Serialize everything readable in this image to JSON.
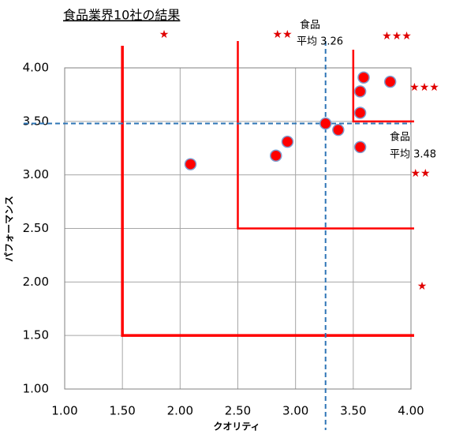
{
  "chart_data": {
    "type": "scatter",
    "title": "食品業界10社の結果",
    "x_label": "クオリティ",
    "y_label": "パフォーマンス",
    "xlim": [
      1,
      4
    ],
    "ylim": [
      1,
      4
    ],
    "xticks": [
      {
        "value": 1,
        "label": "1.00"
      },
      {
        "value": 1.5,
        "label": "1.50"
      },
      {
        "value": 2,
        "label": "2.00"
      },
      {
        "value": 2.5,
        "label": "2.50"
      },
      {
        "value": 3,
        "label": "3.00"
      },
      {
        "value": 3.5,
        "label": "3.50"
      },
      {
        "value": 4,
        "label": "4.00"
      }
    ],
    "yticks": [
      {
        "value": 1,
        "label": "1.00"
      },
      {
        "value": 1.5,
        "label": "1.50"
      },
      {
        "value": 2,
        "label": "2.00"
      },
      {
        "value": 2.5,
        "label": "2.50"
      },
      {
        "value": 3,
        "label": "3.00"
      },
      {
        "value": 3.5,
        "label": "3.50"
      },
      {
        "value": 4,
        "label": "4.00"
      }
    ],
    "grid": true,
    "series": [
      {
        "color": "#ff0000",
        "x": [
          2.09,
          2.83,
          2.93,
          3.26,
          3.37,
          3.56,
          3.56,
          3.56,
          3.59,
          3.82
        ],
        "values": [
          3.1,
          3.18,
          3.31,
          3.48,
          3.42,
          3.26,
          3.58,
          3.78,
          3.91,
          3.87
        ]
      }
    ],
    "zones": [
      {
        "x": 1.5,
        "y": 1.5
      },
      {
        "x": 2.5,
        "y": 2.5
      },
      {
        "x": 3.5,
        "y": 3.5
      }
    ],
    "zone_color": "#ff0000",
    "reference_lines": {
      "x": 3.26,
      "y": 3.48,
      "color": "#2e75b6",
      "x_label": [
        "食品",
        "平均 3.26"
      ],
      "y_label": [
        "食品",
        "平均 3.48"
      ]
    },
    "ratings": [
      "★",
      "★★",
      "★★★",
      "★★★",
      "★★",
      "★"
    ]
  }
}
